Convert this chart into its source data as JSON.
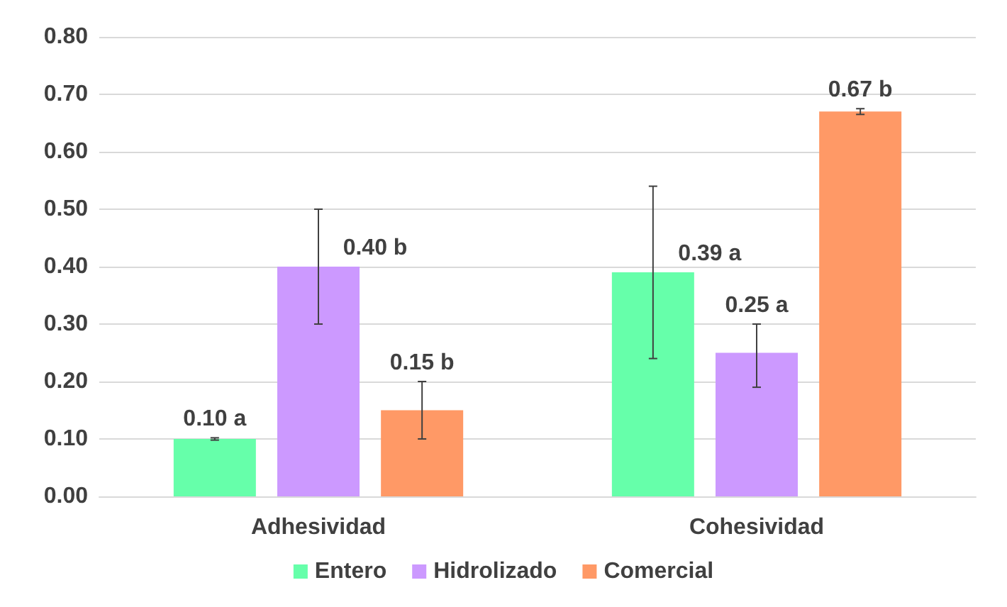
{
  "chart_data": {
    "type": "bar",
    "categories": [
      "Adhesividad",
      "Cohesividad"
    ],
    "series": [
      {
        "name": "Entero",
        "color": "#66ffaa",
        "values": [
          0.1,
          0.39
        ],
        "errors": [
          0.002,
          0.15
        ],
        "value_labels": [
          "0.10 a",
          "0.39 a"
        ]
      },
      {
        "name": "Hidrolizado",
        "color": "#cc99ff",
        "values": [
          0.4,
          0.25
        ],
        "errors": [
          0.1,
          [
            0.19,
            0.3
          ]
        ],
        "value_labels": [
          "0.40 b",
          "0.25 a"
        ]
      },
      {
        "name": "Comercial",
        "color": "#ff9966",
        "values": [
          0.15,
          0.67
        ],
        "errors": [
          0.05,
          0.005
        ],
        "value_labels": [
          "0.15 b",
          "0.67 b"
        ]
      }
    ],
    "ylim": [
      0,
      0.8
    ],
    "yticks": [
      {
        "value": 0,
        "label": "0.00"
      },
      {
        "value": 0.1,
        "label": "0.10"
      },
      {
        "value": 0.2,
        "label": "0.20"
      },
      {
        "value": 0.3,
        "label": "0.30"
      },
      {
        "value": 0.4,
        "label": "0.40"
      },
      {
        "value": 0.5,
        "label": "0.50"
      },
      {
        "value": 0.6,
        "label": "0.60"
      },
      {
        "value": 0.7,
        "label": "0.70"
      },
      {
        "value": 0.8,
        "label": "0.80"
      }
    ],
    "grid": "y",
    "legend": "bottom"
  }
}
